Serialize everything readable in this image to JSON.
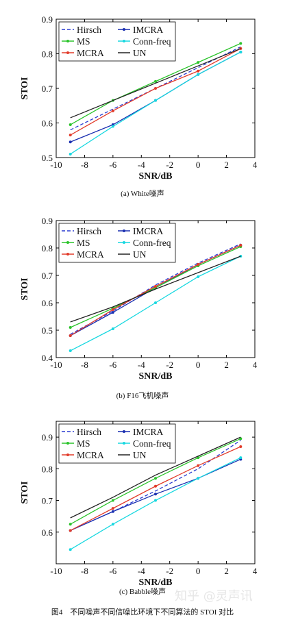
{
  "figure_caption": "图4　不同噪声不同信噪比环境下不同算法的 STOI 对比",
  "watermark": "知乎 @灵声讯",
  "styles": {
    "Hirsch": {
      "color": "#2a3bd1",
      "dash": "5,3",
      "marker": "none"
    },
    "IMCRA": {
      "color": "#1a2fb0",
      "dash": "",
      "marker": "dot"
    },
    "MS": {
      "color": "#2bc42b",
      "dash": "",
      "marker": "dot"
    },
    "Conn-freq": {
      "color": "#18d8e0",
      "dash": "",
      "marker": "dot"
    },
    "MCRA": {
      "color": "#e23b2a",
      "dash": "",
      "marker": "dot"
    },
    "UN": {
      "color": "#222222",
      "dash": "",
      "marker": "none"
    }
  },
  "chart_data": [
    {
      "type": "line",
      "caption": "(a) White噪声",
      "xlabel": "SNR/dB",
      "ylabel": "STOI",
      "xlim": [
        -10,
        4
      ],
      "ylim": [
        0.5,
        0.9
      ],
      "xticks": [
        -10,
        -8,
        -6,
        -4,
        -2,
        0,
        2,
        4
      ],
      "yticks": [
        0.5,
        0.6,
        0.7,
        0.8,
        0.9
      ],
      "x": [
        -9,
        -6,
        -3,
        0,
        3
      ],
      "legend": [
        "Hirsch",
        "IMCRA",
        "MS",
        "Conn-freq",
        "MCRA",
        "UN"
      ],
      "series": [
        {
          "name": "Hirsch",
          "values": [
            0.58,
            0.64,
            0.7,
            0.76,
            0.82
          ]
        },
        {
          "name": "IMCRA",
          "values": [
            0.545,
            0.595,
            0.665,
            0.74,
            0.805
          ]
        },
        {
          "name": "MS",
          "values": [
            0.595,
            0.665,
            0.72,
            0.775,
            0.83
          ]
        },
        {
          "name": "Conn-freq",
          "values": [
            0.51,
            0.59,
            0.665,
            0.74,
            0.805
          ]
        },
        {
          "name": "MCRA",
          "values": [
            0.565,
            0.635,
            0.7,
            0.75,
            0.815
          ]
        },
        {
          "name": "UN",
          "values": [
            0.615,
            0.665,
            0.715,
            0.765,
            0.815
          ]
        }
      ]
    },
    {
      "type": "line",
      "caption": "(b) F16飞机噪声",
      "xlabel": "SNR/dB",
      "ylabel": "STOI",
      "xlim": [
        -10,
        4
      ],
      "ylim": [
        0.4,
        0.9
      ],
      "xticks": [
        -10,
        -8,
        -6,
        -4,
        -2,
        0,
        2,
        4
      ],
      "yticks": [
        0.4,
        0.5,
        0.6,
        0.7,
        0.8,
        0.9
      ],
      "x": [
        -9,
        -6,
        -3,
        0,
        3
      ],
      "legend": [
        "Hirsch",
        "IMCRA",
        "MS",
        "Conn-freq",
        "MCRA",
        "UN"
      ],
      "series": [
        {
          "name": "Hirsch",
          "values": [
            0.485,
            0.57,
            0.665,
            0.745,
            0.815
          ]
        },
        {
          "name": "IMCRA",
          "values": [
            0.48,
            0.565,
            0.655,
            0.74,
            0.81
          ]
        },
        {
          "name": "MS",
          "values": [
            0.51,
            0.58,
            0.655,
            0.735,
            0.805
          ]
        },
        {
          "name": "Conn-freq",
          "values": [
            0.425,
            0.505,
            0.6,
            0.695,
            0.77
          ]
        },
        {
          "name": "MCRA",
          "values": [
            0.48,
            0.575,
            0.66,
            0.74,
            0.81
          ]
        },
        {
          "name": "UN",
          "values": [
            0.53,
            0.585,
            0.65,
            0.71,
            0.77
          ]
        }
      ]
    },
    {
      "type": "line",
      "caption": "(c) Babble噪声",
      "xlabel": "SNR/dB",
      "ylabel": "STOI",
      "xlim": [
        -10,
        4
      ],
      "ylim": [
        0.5,
        0.95
      ],
      "xticks": [
        -10,
        -8,
        -6,
        -4,
        -2,
        0,
        2,
        4
      ],
      "yticks": [
        0.6,
        0.7,
        0.8,
        0.9
      ],
      "x": [
        -9,
        -6,
        -3,
        0,
        3
      ],
      "legend": [
        "Hirsch",
        "IMCRA",
        "MS",
        "Conn-freq",
        "MCRA",
        "UN"
      ],
      "series": [
        {
          "name": "Hirsch",
          "values": [
            0.605,
            0.665,
            0.73,
            0.8,
            0.89
          ]
        },
        {
          "name": "IMCRA",
          "values": [
            0.605,
            0.665,
            0.72,
            0.77,
            0.83
          ]
        },
        {
          "name": "MS",
          "values": [
            0.625,
            0.7,
            0.77,
            0.835,
            0.895
          ]
        },
        {
          "name": "Conn-freq",
          "values": [
            0.545,
            0.625,
            0.7,
            0.77,
            0.835
          ]
        },
        {
          "name": "MCRA",
          "values": [
            0.605,
            0.675,
            0.745,
            0.81,
            0.87
          ]
        },
        {
          "name": "UN",
          "values": [
            0.645,
            0.71,
            0.78,
            0.84,
            0.9
          ]
        }
      ]
    }
  ]
}
